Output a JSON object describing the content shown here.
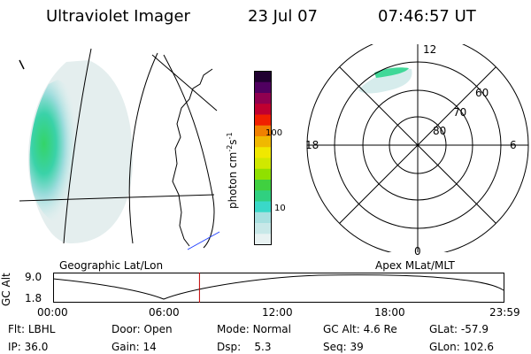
{
  "header": {
    "title": "Ultraviolet Imager",
    "date": "23 Jul 07",
    "time": "07:46:57 UT"
  },
  "geo_panel": {
    "label": "Geographic Lat/Lon"
  },
  "polar_panel": {
    "label": "Apex MLat/MLT",
    "mlt_labels": [
      "12",
      "18",
      "6",
      "0"
    ],
    "lat_labels": [
      "60",
      "70",
      "80"
    ]
  },
  "colorbar": {
    "unit_label": "photon cm",
    "unit_sup1": "-2",
    "unit_s": "s",
    "unit_sup2": "-1",
    "ticks": [
      "100",
      "10"
    ],
    "scale": "log",
    "colors": [
      "#e8f2f2",
      "#c8e8e8",
      "#a8e0e0",
      "#3ad8c8",
      "#30d080",
      "#40d040",
      "#90e000",
      "#d0e800",
      "#f0e800",
      "#f0b800",
      "#f08000",
      "#f02000",
      "#c00030",
      "#900050",
      "#500060",
      "#200030"
    ]
  },
  "altitude_plot": {
    "ylabel": "GC Alt",
    "yticks": [
      "9.0",
      "1.8"
    ],
    "xticks": [
      "00:00",
      "06:00",
      "12:00",
      "18:00",
      "23:59"
    ],
    "current_time_hours": 7.78,
    "marker_color": "#c00000"
  },
  "status": {
    "flt_label": "Flt:",
    "flt_value": "LBHL",
    "ip_label": "IP:",
    "ip_value": "36.0",
    "door_label": "Door:",
    "door_value": "Open",
    "gain_label": "Gain:",
    "gain_value": "14",
    "mode_label": "Mode:",
    "mode_value": "Normal",
    "dsp_label": "Dsp:",
    "dsp_value": "5.3",
    "gcalt_label": "GC Alt:",
    "gcalt_value": "4.6 Re",
    "seq_label": "Seq:",
    "seq_value": "39",
    "glat_label": "GLat:",
    "glat_value": "-57.9",
    "glon_label": "GLon:",
    "glon_value": "102.6"
  }
}
